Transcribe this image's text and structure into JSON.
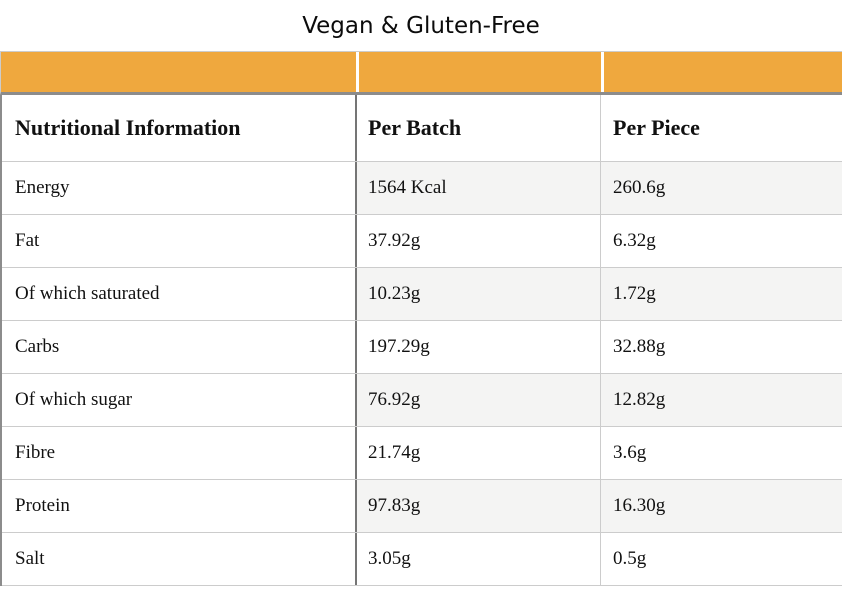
{
  "title": "Vegan & Gluten-Free",
  "theme": {
    "banner_color": "#EFA83E",
    "stripe_color": "#f4f4f3"
  },
  "table": {
    "headers": [
      "Nutritional Information",
      "Per Batch",
      "Per Piece"
    ],
    "rows": [
      [
        "Energy",
        "1564 Kcal",
        "260.6g"
      ],
      [
        "Fat",
        "37.92g",
        "6.32g"
      ],
      [
        "Of which saturated",
        "10.23g",
        "1.72g"
      ],
      [
        "Carbs",
        "197.29g",
        "32.88g"
      ],
      [
        "Of which sugar",
        "76.92g",
        "12.82g"
      ],
      [
        "Fibre",
        "21.74g",
        "3.6g"
      ],
      [
        "Protein",
        "97.83g",
        "16.30g"
      ],
      [
        "Salt",
        "3.05g",
        "0.5g"
      ]
    ]
  }
}
